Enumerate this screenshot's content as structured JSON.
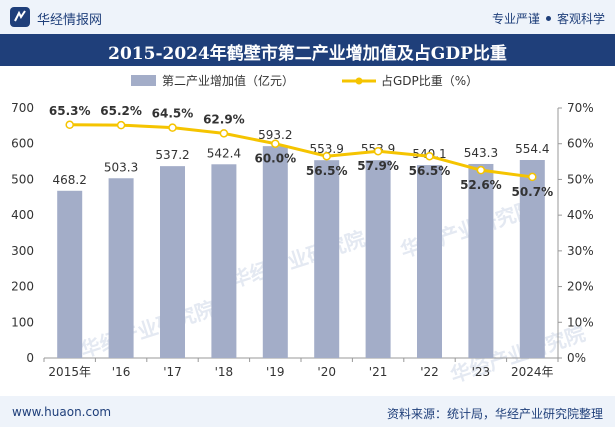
{
  "header": {
    "brand": "华经情报网",
    "slogan_left": "专业严谨",
    "slogan_right": "客观科学"
  },
  "title": "2015-2024年鹤壁市第二产业增加值及占GDP比重",
  "footer": {
    "url": "www.huaon.com",
    "source": "资料来源：统计局，华经产业研究院整理"
  },
  "watermark": "华经产业研究院",
  "colors": {
    "bar": "#a3adc8",
    "line": "#f5c400",
    "brand": "#1f3f7a"
  },
  "chart_data": {
    "type": "bar",
    "categories": [
      "2015年",
      "'16",
      "'17",
      "'18",
      "'19",
      "'20",
      "'21",
      "'22",
      "'23",
      "2024年"
    ],
    "series": [
      {
        "name": "第二产业增加值（亿元）",
        "type": "bar",
        "axis": "left",
        "values": [
          468.2,
          503.3,
          537.2,
          542.4,
          593.2,
          553.9,
          553.9,
          540.1,
          543.3,
          554.4
        ],
        "labels": [
          "468.2",
          "503.3",
          "537.2",
          "542.4",
          "593.2",
          "553.9",
          "553.9",
          "540.1",
          "543.3",
          "554.4"
        ]
      },
      {
        "name": "占GDP比重（%）",
        "type": "line",
        "axis": "right",
        "values": [
          65.3,
          65.2,
          64.5,
          62.9,
          60.0,
          56.5,
          57.9,
          56.5,
          52.6,
          50.7
        ],
        "labels": [
          "65.3%",
          "65.2%",
          "64.5%",
          "62.9%",
          "60.0%",
          "56.5%",
          "57.9%",
          "56.5%",
          "52.6%",
          "50.7%"
        ]
      }
    ],
    "ylim_left": [
      0,
      700
    ],
    "yticks_left": [
      "0",
      "100",
      "200",
      "300",
      "400",
      "500",
      "600",
      "700"
    ],
    "ylim_right": [
      0,
      70
    ],
    "yticks_right": [
      "0%",
      "10%",
      "20%",
      "30%",
      "40%",
      "50%",
      "60%",
      "70%"
    ],
    "legend": "top-center",
    "grid": false
  }
}
